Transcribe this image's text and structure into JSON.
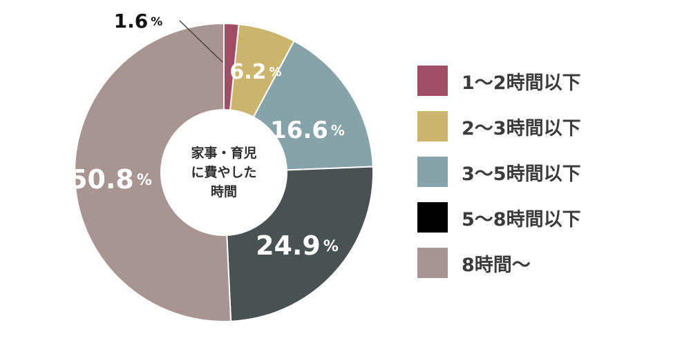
{
  "chart_data": {
    "type": "pie",
    "center_label": [
      "家事・育児",
      "に費やした",
      "時間"
    ],
    "percent_sign": "%",
    "slices": [
      {
        "label": "1〜2時間以下",
        "value": 1.6,
        "display": "1.6",
        "color": "#a04e66",
        "label_color": "#111111"
      },
      {
        "label": "2〜3時間以下",
        "value": 6.2,
        "display": "6.2",
        "color": "#cbb56c",
        "label_color": "#ffffff"
      },
      {
        "label": "3〜5時間以下",
        "value": 16.6,
        "display": "16.6",
        "color": "#87a3aa",
        "label_color": "#ffffff"
      },
      {
        "label": "5〜8時間以下",
        "value": 24.9,
        "display": "24.9",
        "color": "#4a5153",
        "label_color": "#ffffff"
      },
      {
        "label": "8時間〜",
        "value": 50.8,
        "display": "50.8",
        "color": "#a89593",
        "label_color": "#ffffff"
      }
    ],
    "legend_position": "right",
    "legend_swatch_overrides": [
      "#a04e66",
      "#cbb56c",
      "#87a3aa",
      "#000000",
      "#a89593"
    ]
  }
}
